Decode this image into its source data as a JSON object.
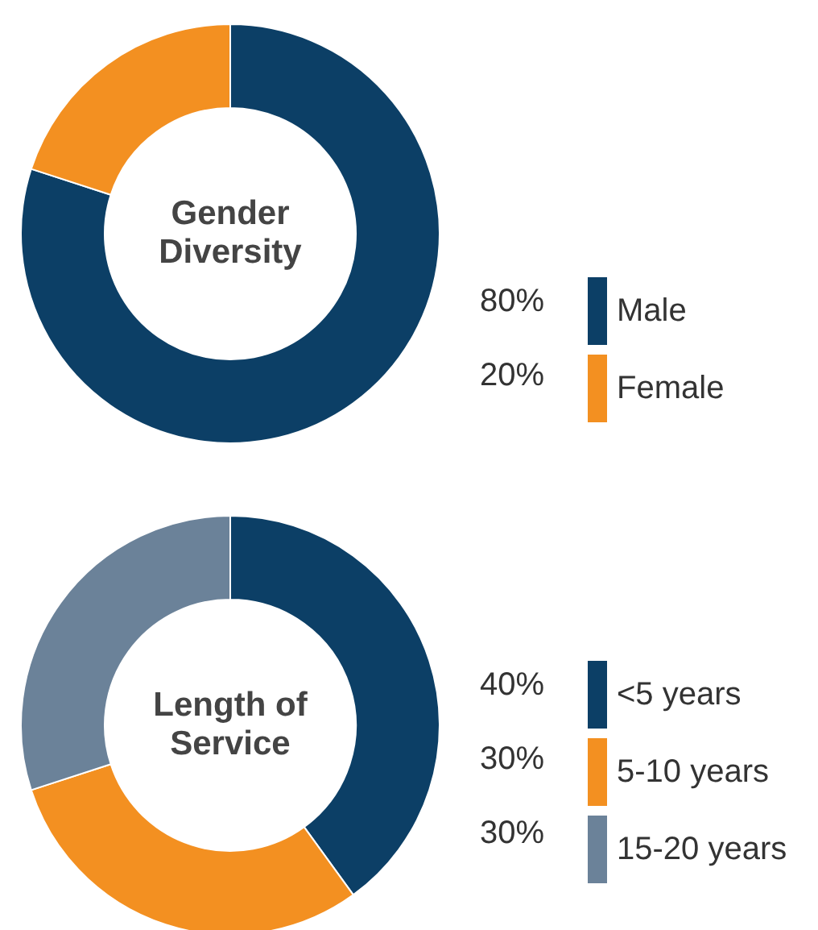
{
  "chart_data": [
    {
      "type": "donut",
      "title": "Gender Diversity",
      "categories": [
        "Male",
        "Female"
      ],
      "values": [
        80,
        20
      ],
      "value_labels": [
        "80%",
        "20%"
      ],
      "colors": [
        "#0c3f66",
        "#f39021"
      ],
      "legend": "right"
    },
    {
      "type": "donut",
      "title": "Length of Service",
      "categories": [
        "<5 years",
        "5-10 years",
        "15-20 years"
      ],
      "values": [
        40,
        30,
        30
      ],
      "value_labels": [
        "40%",
        "30%",
        "30%"
      ],
      "colors": [
        "#0c3f66",
        "#f39021",
        "#6b8299"
      ],
      "legend": "right"
    }
  ]
}
